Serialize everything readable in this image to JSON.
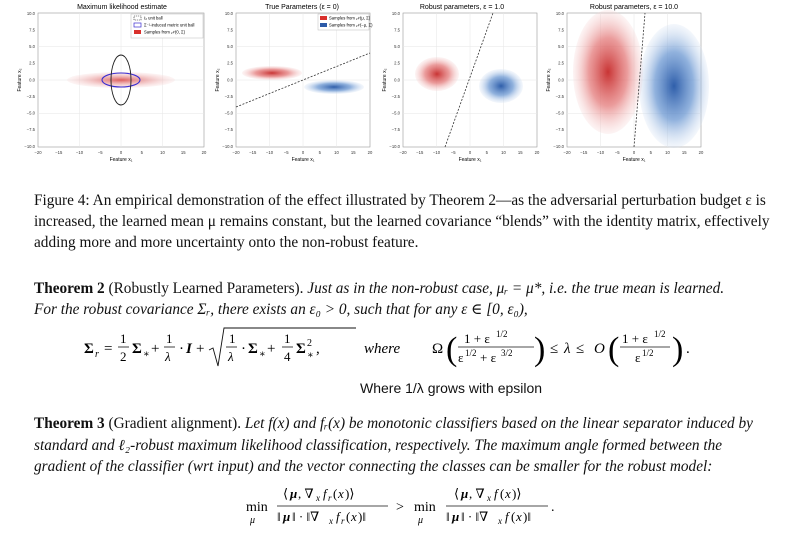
{
  "figure": {
    "panels": [
      {
        "title": "Maximum likelihood estimate",
        "legend": [
          "ℓ₂ unit ball",
          "Σ⁻¹-induced metric unit ball",
          "Samples from 𝒩(0, Σ)"
        ]
      },
      {
        "title": "True Parameters (ε = 0)",
        "legend": [
          "Samples from 𝒩(μ, Σ)",
          "Samples from 𝒩(−μ, Σ)"
        ]
      },
      {
        "title": "Robust parameters, ε = 1.0",
        "legend": []
      },
      {
        "title": "Robust parameters, ε = 10.0",
        "legend": []
      }
    ],
    "xlabel": "Feature x₁",
    "ylabel": "Feature x₂",
    "xticks": [
      "−20",
      "−15",
      "−10",
      "−5",
      "0",
      "5",
      "10",
      "15",
      "20"
    ],
    "yticks": [
      "10.0",
      "7.5",
      "5.0",
      "2.5",
      "0.0",
      "−2.5",
      "−5.0",
      "−7.5",
      "−10.0"
    ],
    "colors": {
      "red": "#d63c3c",
      "blue": "#2f6bbf",
      "legend_red": "#d9302c",
      "legend_blue": "#2c5aa8"
    }
  },
  "caption": {
    "label": "Figure 4:",
    "text": "An empirical demonstration of the effect illustrated by Theorem 2—as the adversarial perturbation budget ε is increased, the learned mean μ remains constant, but the learned covariance “blends” with the identity matrix, effectively adding more and more uncertainty onto the non-robust feature."
  },
  "theorem2": {
    "label": "Theorem 2",
    "name": "(Robustly Learned Parameters).",
    "line1": "Just as in the non-robust case, μᵣ = μ*, i.e. the true mean is learned.",
    "line2": "For the robust covariance Σᵣ, there exists an ε₀ > 0, such that for any ε ∈ [0, ε₀),"
  },
  "equation1": {
    "where": "where"
  },
  "note": "Where 1/λ grows with epsilon",
  "theorem3": {
    "label": "Theorem 3",
    "name": "(Gradient alignment).",
    "text": "Let f(x) and fᵣ(x) be monotonic classifiers based on the linear separator induced by standard and ℓ₂-robust maximum likelihood classification, respectively. The maximum angle formed between the gradient of the classifier (wrt input) and the vector connecting the classes can be smaller for the robust model:"
  }
}
